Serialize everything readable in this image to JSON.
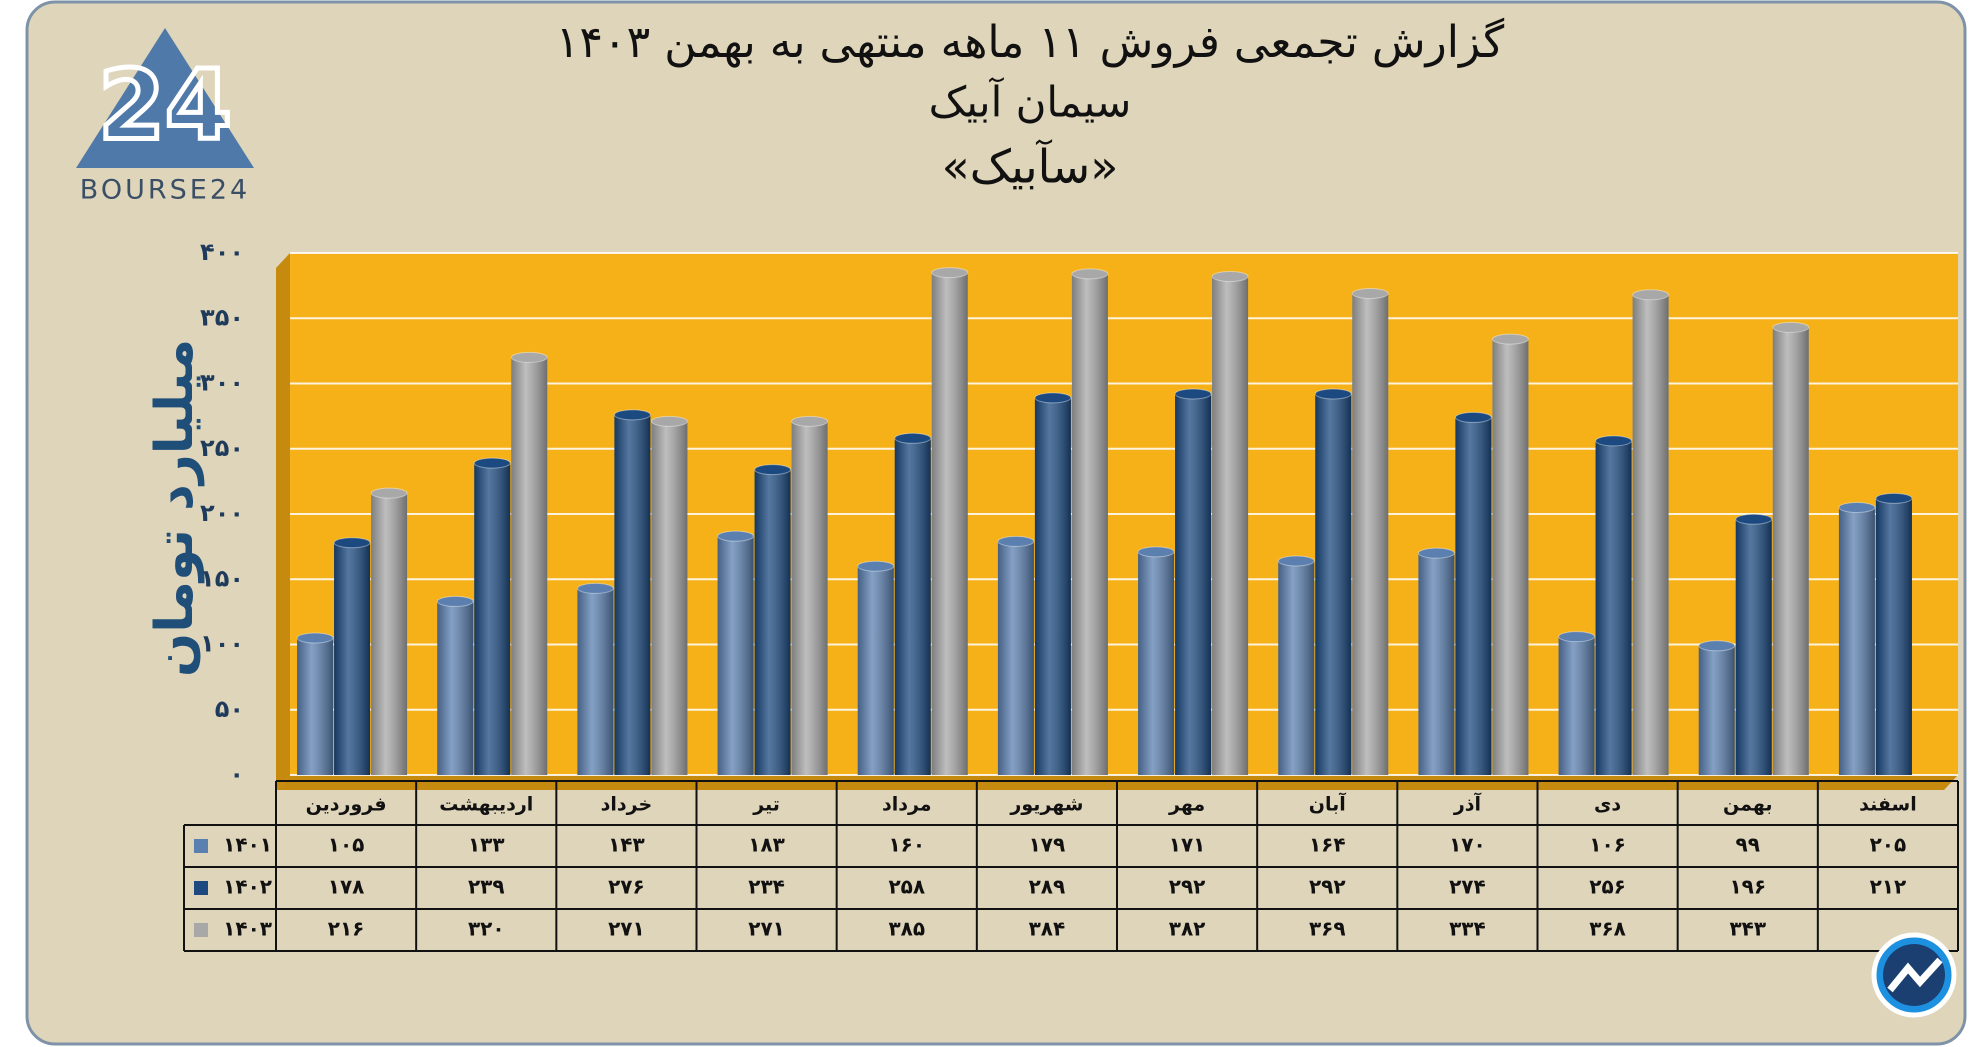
{
  "logo": {
    "mark": "24",
    "text": "BOURSE24"
  },
  "chart_data": {
    "type": "bar",
    "title": "گزارش تجمعی فروش ۱۱ ماهه منتهی به بهمن ۱۴۰۳",
    "subtitle": "سیمان آبیک",
    "subtitle2": "«سآبیک»",
    "y_label": "میلیارد تومان",
    "categories": [
      "فروردین",
      "اردیبهشت",
      "خرداد",
      "تیر",
      "مرداد",
      "شهریور",
      "مهر",
      "آبان",
      "آذر",
      "دی",
      "بهمن",
      "اسفند"
    ],
    "series": [
      {
        "name": "۱۴۰۱",
        "color": "#5b80b0",
        "values": [
          105,
          133,
          143,
          183,
          160,
          179,
          171,
          164,
          170,
          106,
          99,
          205
        ],
        "value_labels": [
          "۱۰۵",
          "۱۳۳",
          "۱۴۳",
          "۱۸۳",
          "۱۶۰",
          "۱۷۹",
          "۱۷۱",
          "۱۶۴",
          "۱۷۰",
          "۱۰۶",
          "۹۹",
          "۲۰۵"
        ]
      },
      {
        "name": "۱۴۰۲",
        "color": "#1c4a80",
        "values": [
          178,
          239,
          276,
          234,
          258,
          289,
          292,
          292,
          274,
          256,
          196,
          212
        ],
        "value_labels": [
          "۱۷۸",
          "۲۳۹",
          "۲۷۶",
          "۲۳۴",
          "۲۵۸",
          "۲۸۹",
          "۲۹۲",
          "۲۹۲",
          "۲۷۴",
          "۲۵۶",
          "۱۹۶",
          "۲۱۲"
        ]
      },
      {
        "name": "۱۴۰۳",
        "color": "#a8a8a8",
        "values": [
          216,
          320,
          271,
          271,
          385,
          384,
          382,
          369,
          334,
          368,
          343,
          null
        ],
        "value_labels": [
          "۲۱۶",
          "۳۲۰",
          "۲۷۱",
          "۲۷۱",
          "۳۸۵",
          "۳۸۴",
          "۳۸۲",
          "۳۶۹",
          "۳۳۴",
          "۳۶۸",
          "۳۴۳",
          null
        ]
      }
    ],
    "ylim": [
      0,
      400
    ],
    "yticks": [
      {
        "value": 0,
        "label": "۰"
      },
      {
        "value": 50,
        "label": "۵۰"
      },
      {
        "value": 100,
        "label": "۱۰۰"
      },
      {
        "value": 150,
        "label": "۱۵۰"
      },
      {
        "value": 200,
        "label": "۲۰۰"
      },
      {
        "value": 250,
        "label": "۲۵۰"
      },
      {
        "value": 300,
        "label": "۳۰۰"
      },
      {
        "value": 350,
        "label": "۳۵۰"
      },
      {
        "value": 400,
        "label": "۴۰۰"
      }
    ],
    "grid": true
  }
}
